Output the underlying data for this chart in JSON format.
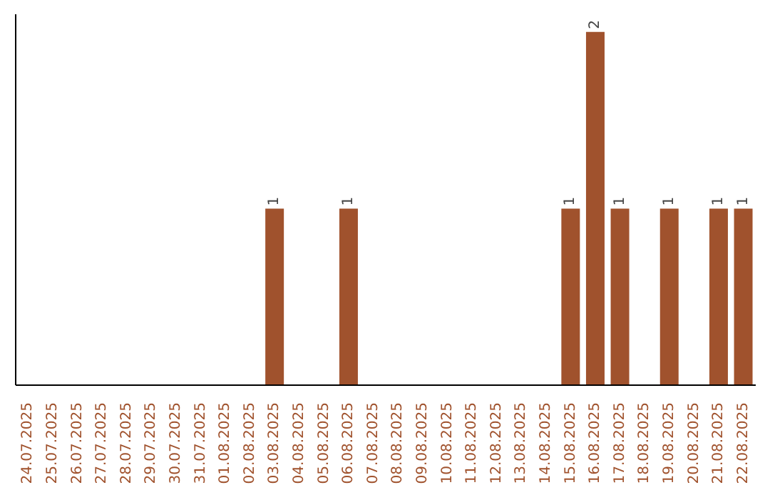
{
  "chart_data": {
    "type": "bar",
    "categories": [
      "24.07.2025",
      "25.07.2025",
      "26.07.2025",
      "27.07.2025",
      "28.07.2025",
      "29.07.2025",
      "30.07.2025",
      "31.07.2025",
      "01.08.2025",
      "02.08.2025",
      "03.08.2025",
      "04.08.2025",
      "05.08.2025",
      "06.08.2025",
      "07.08.2025",
      "08.08.2025",
      "09.08.2025",
      "10.08.2025",
      "11.08.2025",
      "12.08.2025",
      "13.08.2025",
      "14.08.2025",
      "15.08.2025",
      "16.08.2025",
      "17.08.2025",
      "18.08.2025",
      "19.08.2025",
      "20.08.2025",
      "21.08.2025",
      "22.08.2025"
    ],
    "values": [
      0,
      0,
      0,
      0,
      0,
      0,
      0,
      0,
      0,
      0,
      1,
      0,
      0,
      1,
      0,
      0,
      0,
      0,
      0,
      0,
      0,
      0,
      1,
      2,
      1,
      0,
      1,
      0,
      1,
      1
    ],
    "value_labels": [
      null,
      null,
      null,
      null,
      null,
      null,
      null,
      null,
      null,
      null,
      "1",
      null,
      null,
      "1",
      null,
      null,
      null,
      null,
      null,
      null,
      null,
      null,
      "1",
      "2",
      "1",
      null,
      "1",
      null,
      "1",
      "1"
    ],
    "color": "#a0522d",
    "ylim": [
      0,
      2.1
    ],
    "tick_labels": "x"
  }
}
